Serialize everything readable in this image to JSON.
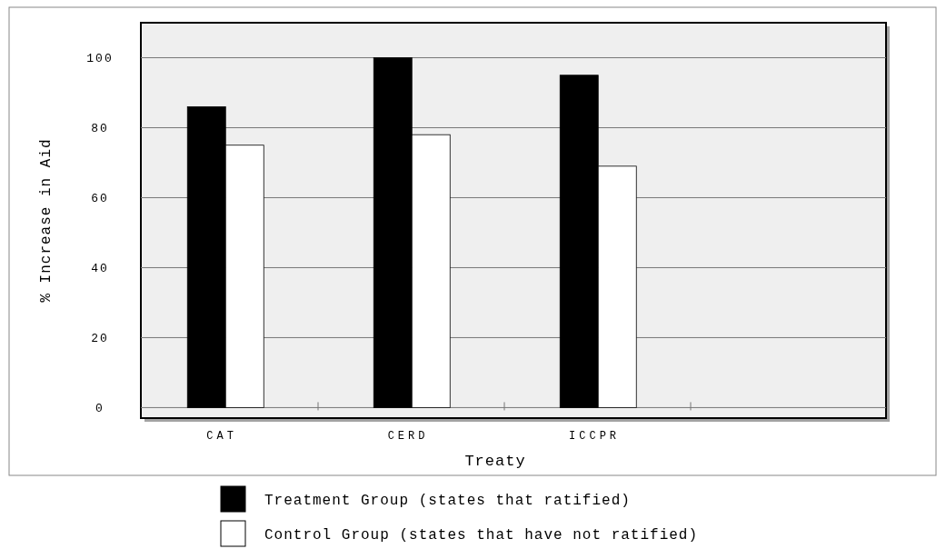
{
  "chart_data": {
    "type": "bar",
    "xlabel": "Treaty",
    "ylabel": "% Increase in Aid",
    "categories": [
      "CAT",
      "CERD",
      "ICCPR"
    ],
    "series": [
      {
        "name": "Treatment Group (states that ratified)",
        "color": "#000000",
        "values": [
          86,
          100,
          95
        ]
      },
      {
        "name": "Control Group (states that have not ratified)",
        "color": "#ffffff",
        "values": [
          75,
          78,
          69
        ]
      }
    ],
    "ylim": [
      -3,
      110
    ],
    "yticks": [
      0,
      20,
      40,
      60,
      80,
      100
    ],
    "grid": "y",
    "legend": "bottom"
  }
}
